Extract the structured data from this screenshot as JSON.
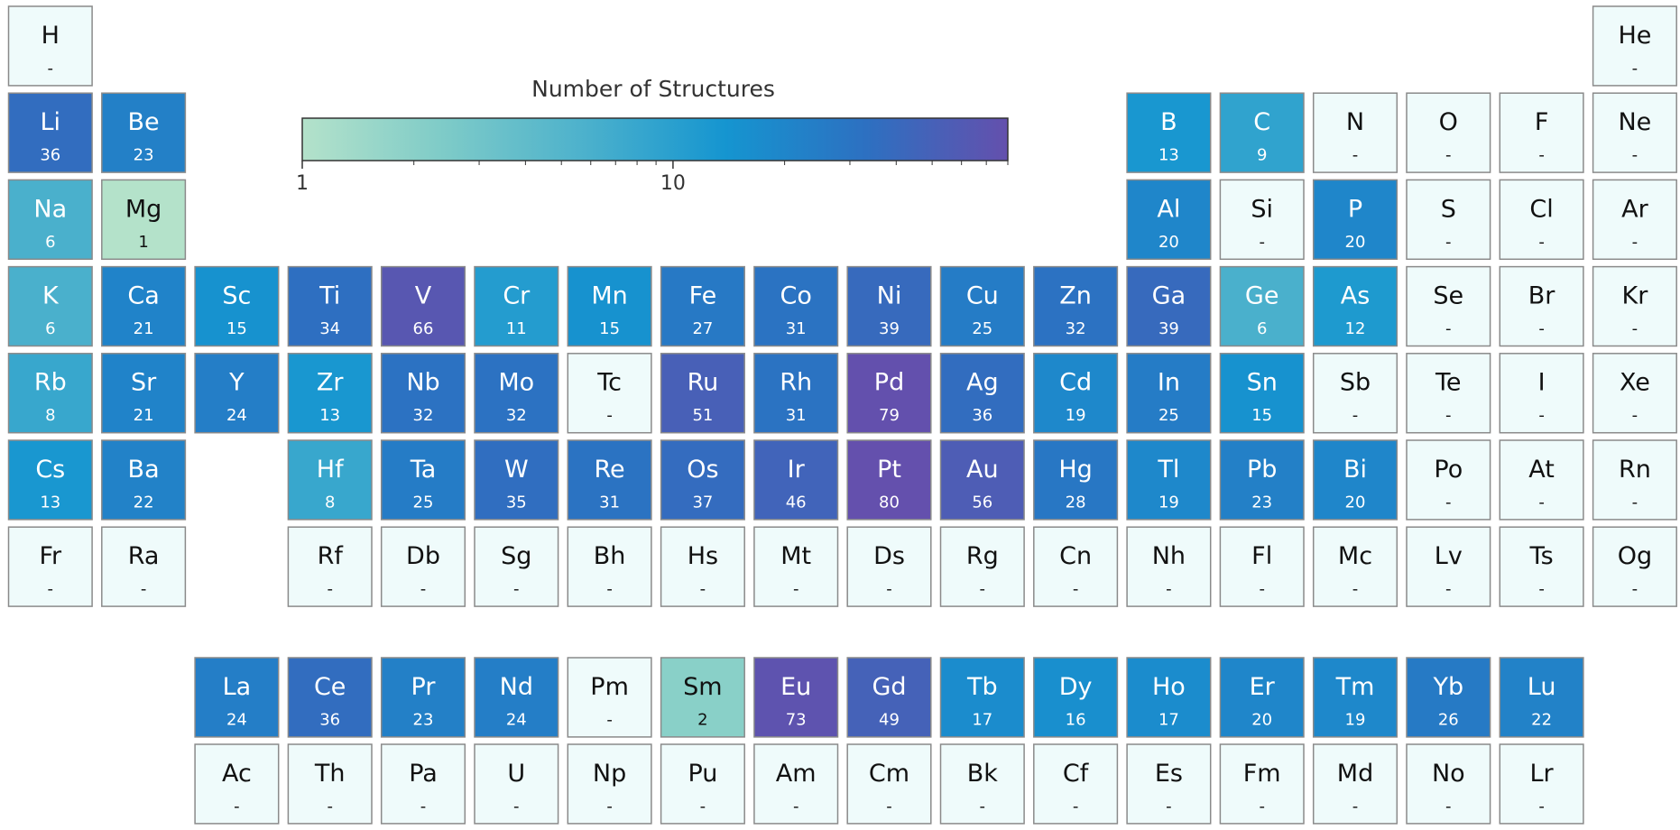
{
  "chart_data": {
    "type": "periodic-table",
    "colorbar": {
      "title": "Number of Structures",
      "scale": "log",
      "clim": [
        1,
        80
      ],
      "ticks": [
        1,
        10
      ],
      "minor_ticks": [
        2,
        3,
        4,
        5,
        6,
        7,
        8,
        9,
        20,
        30,
        40,
        50,
        60,
        70,
        80
      ],
      "colormap": [
        "#b4e2ca",
        "#7ecbc8",
        "#4cb1cc",
        "#1595d0",
        "#2d70c1",
        "#6450ad"
      ]
    },
    "empty_color": "#effbfb",
    "elements": [
      {
        "symbol": "H",
        "value": null,
        "value_label": "-"
      },
      {
        "symbol": "He",
        "value": null,
        "value_label": "-"
      },
      {
        "symbol": "Li",
        "value": 36
      },
      {
        "symbol": "Be",
        "value": 23
      },
      {
        "symbol": "B",
        "value": 13
      },
      {
        "symbol": "C",
        "value": 9
      },
      {
        "symbol": "N",
        "value": null,
        "value_label": "-"
      },
      {
        "symbol": "O",
        "value": null,
        "value_label": "-"
      },
      {
        "symbol": "F",
        "value": null,
        "value_label": "-"
      },
      {
        "symbol": "Ne",
        "value": null,
        "value_label": "-"
      },
      {
        "symbol": "Na",
        "value": 6
      },
      {
        "symbol": "Mg",
        "value": 1
      },
      {
        "symbol": "Al",
        "value": 20
      },
      {
        "symbol": "Si",
        "value": null,
        "value_label": "-"
      },
      {
        "symbol": "P",
        "value": 20
      },
      {
        "symbol": "S",
        "value": null,
        "value_label": "-"
      },
      {
        "symbol": "Cl",
        "value": null,
        "value_label": "-"
      },
      {
        "symbol": "Ar",
        "value": null,
        "value_label": "-"
      },
      {
        "symbol": "K",
        "value": 6
      },
      {
        "symbol": "Ca",
        "value": 21
      },
      {
        "symbol": "Sc",
        "value": 15
      },
      {
        "symbol": "Ti",
        "value": 34
      },
      {
        "symbol": "V",
        "value": 66
      },
      {
        "symbol": "Cr",
        "value": 11
      },
      {
        "symbol": "Mn",
        "value": 15
      },
      {
        "symbol": "Fe",
        "value": 27
      },
      {
        "symbol": "Co",
        "value": 31
      },
      {
        "symbol": "Ni",
        "value": 39
      },
      {
        "symbol": "Cu",
        "value": 25
      },
      {
        "symbol": "Zn",
        "value": 32
      },
      {
        "symbol": "Ga",
        "value": 39
      },
      {
        "symbol": "Ge",
        "value": 6
      },
      {
        "symbol": "As",
        "value": 12
      },
      {
        "symbol": "Se",
        "value": null,
        "value_label": "-"
      },
      {
        "symbol": "Br",
        "value": null,
        "value_label": "-"
      },
      {
        "symbol": "Kr",
        "value": null,
        "value_label": "-"
      },
      {
        "symbol": "Rb",
        "value": 8
      },
      {
        "symbol": "Sr",
        "value": 21
      },
      {
        "symbol": "Y",
        "value": 24
      },
      {
        "symbol": "Zr",
        "value": 13
      },
      {
        "symbol": "Nb",
        "value": 32
      },
      {
        "symbol": "Mo",
        "value": 32
      },
      {
        "symbol": "Tc",
        "value": null,
        "value_label": "-"
      },
      {
        "symbol": "Ru",
        "value": 51
      },
      {
        "symbol": "Rh",
        "value": 31
      },
      {
        "symbol": "Pd",
        "value": 79
      },
      {
        "symbol": "Ag",
        "value": 36
      },
      {
        "symbol": "Cd",
        "value": 19
      },
      {
        "symbol": "In",
        "value": 25
      },
      {
        "symbol": "Sn",
        "value": 15
      },
      {
        "symbol": "Sb",
        "value": null,
        "value_label": "-"
      },
      {
        "symbol": "Te",
        "value": null,
        "value_label": "-"
      },
      {
        "symbol": "I",
        "value": null,
        "value_label": "-"
      },
      {
        "symbol": "Xe",
        "value": null,
        "value_label": "-"
      },
      {
        "symbol": "Cs",
        "value": 13
      },
      {
        "symbol": "Ba",
        "value": 22
      },
      {
        "symbol": "La",
        "value": 24
      },
      {
        "symbol": "Ce",
        "value": 36
      },
      {
        "symbol": "Pr",
        "value": 23
      },
      {
        "symbol": "Nd",
        "value": 24
      },
      {
        "symbol": "Pm",
        "value": null,
        "value_label": "-"
      },
      {
        "symbol": "Sm",
        "value": 2
      },
      {
        "symbol": "Eu",
        "value": 73
      },
      {
        "symbol": "Gd",
        "value": 49
      },
      {
        "symbol": "Tb",
        "value": 17
      },
      {
        "symbol": "Dy",
        "value": 16
      },
      {
        "symbol": "Ho",
        "value": 17
      },
      {
        "symbol": "Er",
        "value": 20
      },
      {
        "symbol": "Tm",
        "value": 19
      },
      {
        "symbol": "Yb",
        "value": 26
      },
      {
        "symbol": "Lu",
        "value": 22
      },
      {
        "symbol": "Hf",
        "value": 8
      },
      {
        "symbol": "Ta",
        "value": 25
      },
      {
        "symbol": "W",
        "value": 35
      },
      {
        "symbol": "Re",
        "value": 31
      },
      {
        "symbol": "Os",
        "value": 37
      },
      {
        "symbol": "Ir",
        "value": 46
      },
      {
        "symbol": "Pt",
        "value": 80
      },
      {
        "symbol": "Au",
        "value": 56
      },
      {
        "symbol": "Hg",
        "value": 28
      },
      {
        "symbol": "Tl",
        "value": 19
      },
      {
        "symbol": "Pb",
        "value": 23
      },
      {
        "symbol": "Bi",
        "value": 20
      },
      {
        "symbol": "Po",
        "value": null,
        "value_label": "-"
      },
      {
        "symbol": "At",
        "value": null,
        "value_label": "-"
      },
      {
        "symbol": "Rn",
        "value": null,
        "value_label": "-"
      },
      {
        "symbol": "Fr",
        "value": null,
        "value_label": "-"
      },
      {
        "symbol": "Ra",
        "value": null,
        "value_label": "-"
      },
      {
        "symbol": "Ac",
        "value": null,
        "value_label": "-"
      },
      {
        "symbol": "Th",
        "value": null,
        "value_label": "-"
      },
      {
        "symbol": "Pa",
        "value": null,
        "value_label": "-"
      },
      {
        "symbol": "U",
        "value": null,
        "value_label": "-"
      },
      {
        "symbol": "Np",
        "value": null,
        "value_label": "-"
      },
      {
        "symbol": "Pu",
        "value": null,
        "value_label": "-"
      },
      {
        "symbol": "Am",
        "value": null,
        "value_label": "-"
      },
      {
        "symbol": "Cm",
        "value": null,
        "value_label": "-"
      },
      {
        "symbol": "Bk",
        "value": null,
        "value_label": "-"
      },
      {
        "symbol": "Cf",
        "value": null,
        "value_label": "-"
      },
      {
        "symbol": "Es",
        "value": null,
        "value_label": "-"
      },
      {
        "symbol": "Fm",
        "value": null,
        "value_label": "-"
      },
      {
        "symbol": "Md",
        "value": null,
        "value_label": "-"
      },
      {
        "symbol": "No",
        "value": null,
        "value_label": "-"
      },
      {
        "symbol": "Lr",
        "value": null,
        "value_label": "-"
      },
      {
        "symbol": "Rf",
        "value": null,
        "value_label": "-"
      },
      {
        "symbol": "Db",
        "value": null,
        "value_label": "-"
      },
      {
        "symbol": "Sg",
        "value": null,
        "value_label": "-"
      },
      {
        "symbol": "Bh",
        "value": null,
        "value_label": "-"
      },
      {
        "symbol": "Hs",
        "value": null,
        "value_label": "-"
      },
      {
        "symbol": "Mt",
        "value": null,
        "value_label": "-"
      },
      {
        "symbol": "Ds",
        "value": null,
        "value_label": "-"
      },
      {
        "symbol": "Rg",
        "value": null,
        "value_label": "-"
      },
      {
        "symbol": "Cn",
        "value": null,
        "value_label": "-"
      },
      {
        "symbol": "Nh",
        "value": null,
        "value_label": "-"
      },
      {
        "symbol": "Fl",
        "value": null,
        "value_label": "-"
      },
      {
        "symbol": "Mc",
        "value": null,
        "value_label": "-"
      },
      {
        "symbol": "Lv",
        "value": null,
        "value_label": "-"
      },
      {
        "symbol": "Ts",
        "value": null,
        "value_label": "-"
      },
      {
        "symbol": "Og",
        "value": null,
        "value_label": "-"
      }
    ]
  }
}
